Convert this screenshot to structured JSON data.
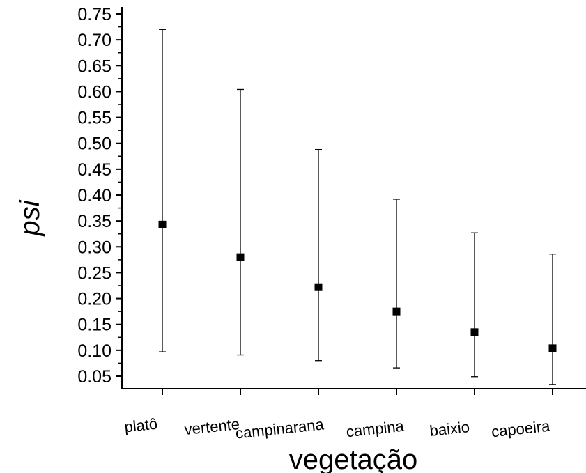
{
  "chart_data": {
    "type": "scatter",
    "title": "",
    "xlabel": "vegetação",
    "ylabel": "psi",
    "categories": [
      "platô",
      "vertente",
      "campinarana",
      "campina",
      "baixio",
      "capoeira"
    ],
    "series": [
      {
        "values": [
          0.343,
          0.28,
          0.222,
          0.175,
          0.135,
          0.104
        ],
        "error_low": [
          0.097,
          0.091,
          0.08,
          0.066,
          0.049,
          0.034
        ],
        "error_high": [
          0.72,
          0.604,
          0.488,
          0.392,
          0.327,
          0.286
        ]
      }
    ],
    "yticks": [
      "0.05",
      "0.10",
      "0.15",
      "0.20",
      "0.25",
      "0.30",
      "0.35",
      "0.40",
      "0.45",
      "0.50",
      "0.55",
      "0.60",
      "0.65",
      "0.70",
      "0.75"
    ],
    "ylim": [
      0.025,
      0.775
    ],
    "grid": false,
    "legend": "none",
    "colors": {
      "marker": "#000000",
      "axis": "#000000"
    }
  }
}
